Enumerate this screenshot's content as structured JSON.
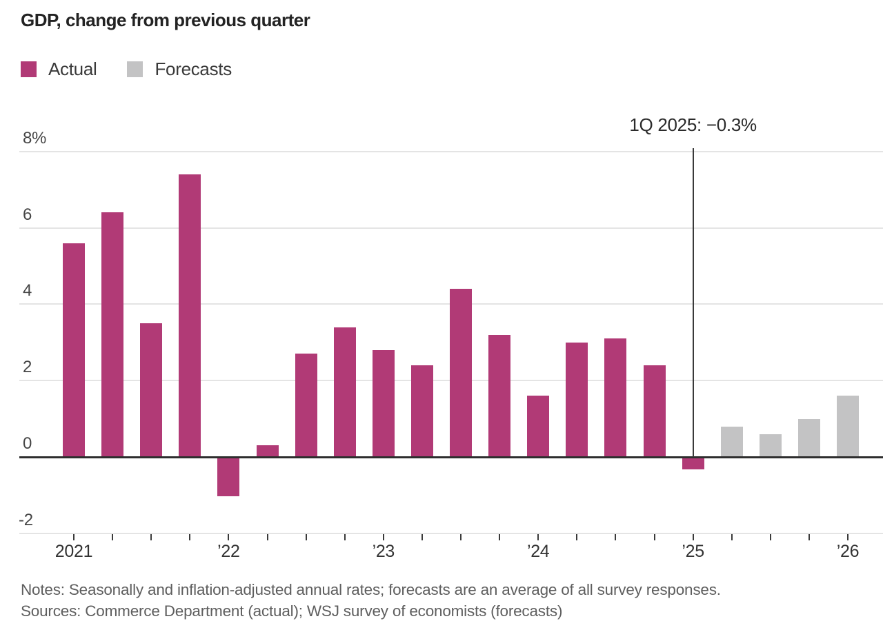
{
  "title": "GDP, change from previous quarter",
  "legend": {
    "actual_label": "Actual",
    "forecast_label": "Forecasts"
  },
  "colors": {
    "actual": "#b13a76",
    "forecast": "#c3c3c4",
    "zero_line": "#2e2e2e",
    "gridline": "#e4e4e4"
  },
  "annotation": {
    "text": "1Q 2025: −0.3%"
  },
  "footer": {
    "notes": "Notes: Seasonally and inflation-adjusted annual rates; forecasts are an average of all survey responses.",
    "sources": "Sources: Commerce Department (actual); WSJ survey of economists (forecasts)"
  },
  "chart_data": {
    "type": "bar",
    "title": "GDP, change from previous quarter",
    "ylim": [
      -2,
      8
    ],
    "grid": true,
    "yticks": [
      {
        "value": 8,
        "label": "8%"
      },
      {
        "value": 6,
        "label": "6"
      },
      {
        "value": 4,
        "label": "4"
      },
      {
        "value": 2,
        "label": "2"
      },
      {
        "value": 0,
        "label": "0"
      },
      {
        "value": -2,
        "label": "-2"
      }
    ],
    "xticks": [
      {
        "index": 0,
        "label": "2021"
      },
      {
        "index": 4,
        "label": "’22"
      },
      {
        "index": 8,
        "label": "’23"
      },
      {
        "index": 12,
        "label": "’24"
      },
      {
        "index": 16,
        "label": "’25"
      },
      {
        "index": 20,
        "label": "’26"
      }
    ],
    "annotation": {
      "text": "1Q 2025: −0.3%",
      "bar_index": 16
    },
    "bars": [
      {
        "quarter": "1Q 2021",
        "value": 5.6,
        "series": "actual"
      },
      {
        "quarter": "2Q 2021",
        "value": 6.4,
        "series": "actual"
      },
      {
        "quarter": "3Q 2021",
        "value": 3.5,
        "series": "actual"
      },
      {
        "quarter": "4Q 2021",
        "value": 7.4,
        "series": "actual"
      },
      {
        "quarter": "1Q 2022",
        "value": -1.0,
        "series": "actual"
      },
      {
        "quarter": "2Q 2022",
        "value": 0.3,
        "series": "actual"
      },
      {
        "quarter": "3Q 2022",
        "value": 2.7,
        "series": "actual"
      },
      {
        "quarter": "4Q 2022",
        "value": 3.4,
        "series": "actual"
      },
      {
        "quarter": "1Q 2023",
        "value": 2.8,
        "series": "actual"
      },
      {
        "quarter": "2Q 2023",
        "value": 2.4,
        "series": "actual"
      },
      {
        "quarter": "3Q 2023",
        "value": 4.4,
        "series": "actual"
      },
      {
        "quarter": "4Q 2023",
        "value": 3.2,
        "series": "actual"
      },
      {
        "quarter": "1Q 2024",
        "value": 1.6,
        "series": "actual"
      },
      {
        "quarter": "2Q 2024",
        "value": 3.0,
        "series": "actual"
      },
      {
        "quarter": "3Q 2024",
        "value": 3.1,
        "series": "actual"
      },
      {
        "quarter": "4Q 2024",
        "value": 2.4,
        "series": "actual"
      },
      {
        "quarter": "1Q 2025",
        "value": -0.3,
        "series": "actual"
      },
      {
        "quarter": "2Q 2025",
        "value": 0.8,
        "series": "forecast"
      },
      {
        "quarter": "3Q 2025",
        "value": 0.6,
        "series": "forecast"
      },
      {
        "quarter": "4Q 2025",
        "value": 1.0,
        "series": "forecast"
      },
      {
        "quarter": "1Q 2026",
        "value": 1.6,
        "series": "forecast"
      }
    ]
  }
}
